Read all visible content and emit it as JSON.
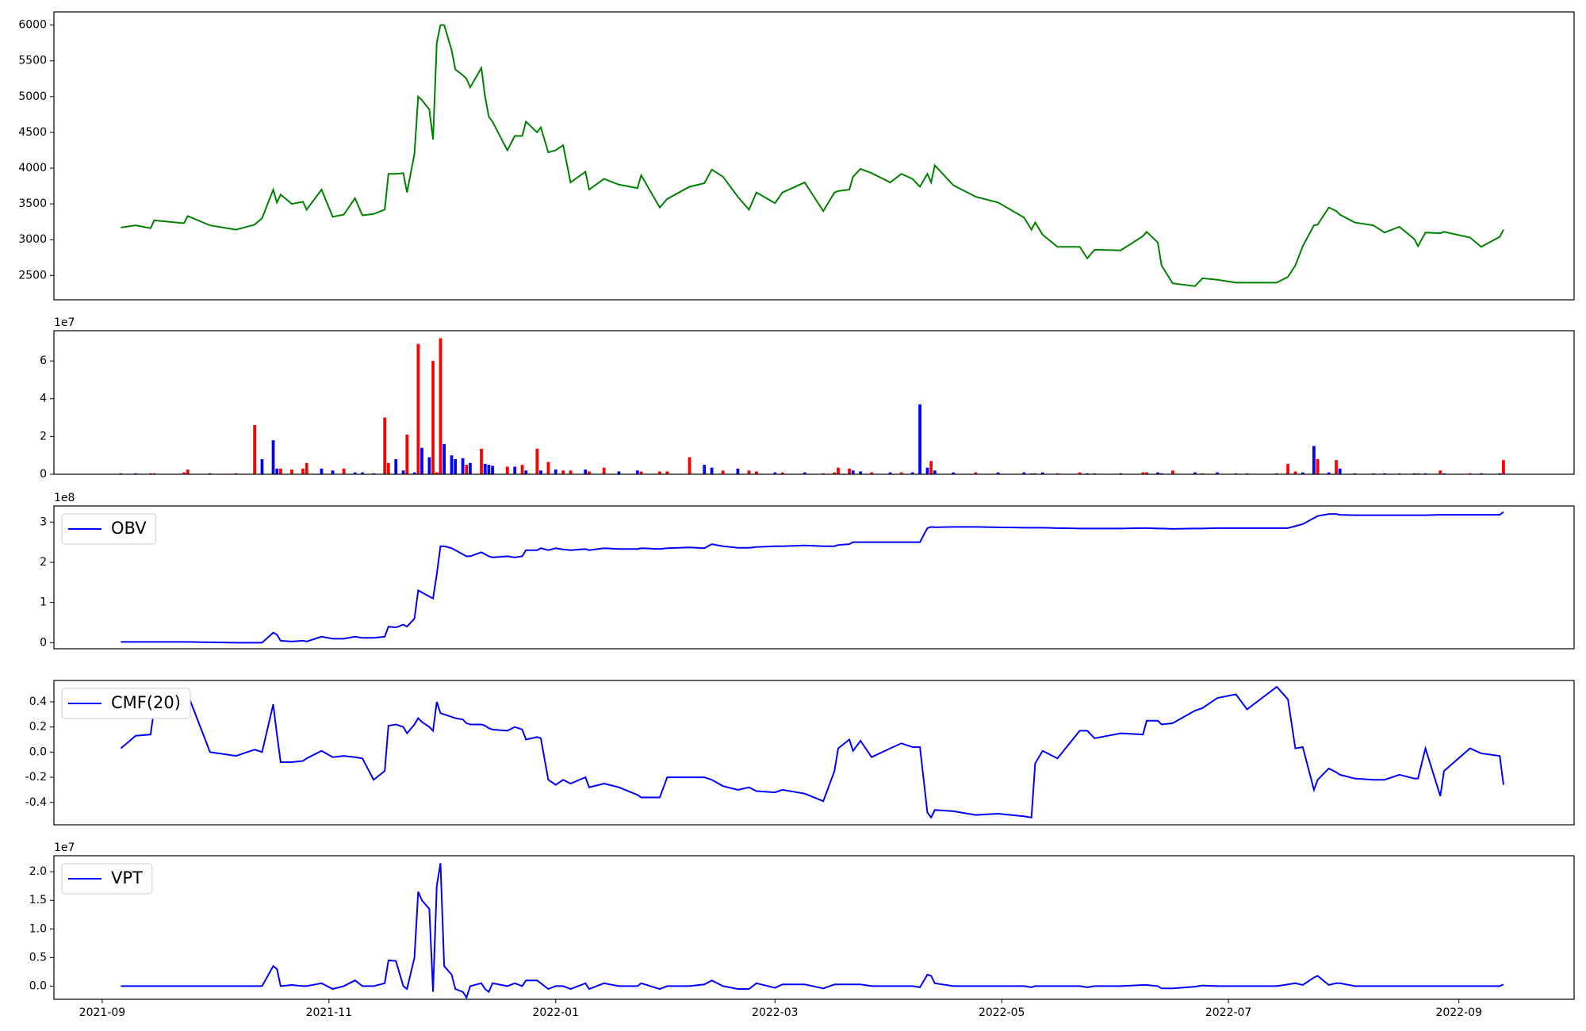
{
  "chart_data": [
    {
      "type": "line",
      "color": "#008000",
      "values": [
        3170,
        3200,
        3160,
        3270,
        3230,
        3330,
        3200,
        3140,
        3210,
        3300,
        3700,
        3520,
        3630,
        3500,
        3530,
        3420,
        3700,
        3320,
        3350,
        3580,
        3340,
        3360,
        3420,
        3920,
        3920,
        3930,
        3660,
        4200,
        5000,
        4950,
        4820,
        4400,
        5750,
        6000,
        6000,
        5650,
        5380,
        5300,
        5250,
        5130,
        5400,
        5000,
        4720,
        4650,
        4250,
        4450,
        4450,
        4650,
        4500,
        4570,
        4220,
        4250,
        4320,
        3800,
        3950,
        3700,
        3850,
        3770,
        3720,
        3900,
        3450,
        3570,
        3740,
        3790,
        3980,
        3880,
        3600,
        3420,
        3660,
        3510,
        3660,
        3800,
        3400,
        3660,
        3680,
        3700,
        3880,
        3990,
        3930,
        3800,
        3920,
        3850,
        3740,
        3920,
        3800,
        4040,
        3760,
        3600,
        3520,
        3310,
        3140,
        3240,
        3070,
        2900,
        2900,
        2740,
        2860,
        2850,
        3050,
        3110,
        2960,
        2640,
        2390,
        2350,
        2460,
        2440,
        2400,
        2400,
        2400,
        2480,
        2640,
        2910,
        3200,
        3210,
        3450,
        3400,
        3350,
        3240,
        3200,
        3100,
        3180,
        3010,
        2910,
        3100,
        3090,
        3110,
        3030,
        2900,
        3040,
        3140
      ],
      "ylim": [
        2160,
        6184
      ],
      "yticks": [
        2500,
        3000,
        3500,
        4000,
        4500,
        5000,
        5500,
        6000
      ]
    },
    {
      "type": "bar",
      "offset_label": "1e7",
      "values": [
        0.05,
        0.05,
        0.05,
        0.05,
        0.1,
        0.25,
        0.05,
        0.05,
        2.6,
        0.8,
        1.8,
        0.3,
        0.3,
        0.25,
        0.3,
        0.6,
        0.3,
        0.2,
        0.3,
        0.1,
        0.1,
        0.05,
        3.0,
        0.6,
        0.8,
        0.2,
        2.1,
        0.1,
        6.9,
        1.4,
        0.9,
        6.0,
        0.1,
        7.2,
        1.6,
        1.0,
        0.8,
        0.85,
        0.5,
        0.6,
        1.35,
        0.55,
        0.5,
        0.45,
        0.4,
        0.4,
        0.5,
        0.2,
        1.35,
        0.2,
        0.65,
        0.25,
        0.2,
        0.2,
        0.25,
        0.15,
        0.35,
        0.15,
        0.2,
        0.15,
        0.15,
        0.15,
        0.9,
        0.5,
        0.35,
        0.2,
        0.3,
        0.2,
        0.15,
        0.1,
        0.1,
        0.1,
        0.05,
        0.1,
        0.35,
        0.3,
        0.2,
        0.15,
        0.1,
        0.1,
        0.1,
        0.1,
        3.7,
        0.35,
        0.7,
        0.2,
        0.1,
        0.1,
        0.1,
        0.1,
        0.05,
        0.05,
        0.1,
        0.05,
        0.1,
        0.05,
        0.05,
        0.05,
        0.1,
        0.1,
        0.1,
        0.05,
        0.2,
        0.1,
        0.05,
        0.1,
        0.05,
        0.05,
        0.05,
        0.55,
        0.15,
        0.1,
        1.5,
        0.8,
        0.1,
        0.75,
        0.3,
        0.05,
        0.05,
        0.05,
        0.05,
        0.05,
        0.05,
        0.05,
        0.2,
        0.05,
        0.05,
        0.05,
        0.05,
        0.75
      ],
      "colors": [
        "red",
        "blue",
        "red",
        "red",
        "red",
        "red",
        "blue",
        "red",
        "red",
        "blue",
        "blue",
        "blue",
        "red",
        "red",
        "red",
        "red",
        "blue",
        "blue",
        "red",
        "blue",
        "blue",
        "blue",
        "red",
        "red",
        "blue",
        "blue",
        "red",
        "blue",
        "red",
        "blue",
        "blue",
        "red",
        "red",
        "red",
        "blue",
        "blue",
        "blue",
        "blue",
        "red",
        "blue",
        "red",
        "blue",
        "blue",
        "blue",
        "red",
        "blue",
        "red",
        "blue",
        "red",
        "blue",
        "red",
        "blue",
        "red",
        "red",
        "blue",
        "red",
        "red",
        "blue",
        "blue",
        "red",
        "red",
        "red",
        "red",
        "blue",
        "blue",
        "red",
        "blue",
        "red",
        "red",
        "blue",
        "red",
        "blue",
        "red",
        "red",
        "red",
        "red",
        "blue",
        "blue",
        "red",
        "blue",
        "red",
        "blue",
        "blue",
        "blue",
        "red",
        "blue",
        "blue",
        "red",
        "blue",
        "blue",
        "red",
        "blue",
        "blue",
        "red",
        "red",
        "blue",
        "red",
        "blue",
        "red",
        "red",
        "blue",
        "blue",
        "red",
        "blue",
        "red",
        "blue",
        "red",
        "red",
        "red",
        "red",
        "red",
        "blue",
        "blue",
        "red",
        "blue",
        "red",
        "blue",
        "blue",
        "red",
        "blue",
        "red",
        "blue",
        "red",
        "blue",
        "red",
        "blue",
        "red",
        "blue",
        "blue",
        "red"
      ],
      "ylim": [
        0,
        7.6
      ],
      "yticks": [
        0,
        2,
        4,
        6
      ]
    },
    {
      "type": "line",
      "offset_label": "1e8",
      "legend": "upper left",
      "series": [
        {
          "name": "OBV",
          "color": "#0000ff",
          "values": [
            0.02,
            0.02,
            0.02,
            0.02,
            0.02,
            0.02,
            0.01,
            0.0,
            0.0,
            0.0,
            0.25,
            0.2,
            0.05,
            0.03,
            0.05,
            0.03,
            0.15,
            0.1,
            0.1,
            0.15,
            0.12,
            0.12,
            0.15,
            0.4,
            0.38,
            0.45,
            0.4,
            0.6,
            1.3,
            1.25,
            1.15,
            1.1,
            1.7,
            2.4,
            2.4,
            2.35,
            2.3,
            2.2,
            2.15,
            2.15,
            2.25,
            2.2,
            2.15,
            2.12,
            2.15,
            2.12,
            2.15,
            2.3,
            2.3,
            2.35,
            2.3,
            2.35,
            2.32,
            2.3,
            2.33,
            2.3,
            2.35,
            2.33,
            2.33,
            2.35,
            2.33,
            2.35,
            2.37,
            2.35,
            2.45,
            2.4,
            2.36,
            2.36,
            2.38,
            2.4,
            2.4,
            2.42,
            2.4,
            2.4,
            2.43,
            2.45,
            2.5,
            2.5,
            2.5,
            2.5,
            2.5,
            2.5,
            2.5,
            2.85,
            2.88,
            2.87,
            2.88,
            2.88,
            2.87,
            2.86,
            2.86,
            2.86,
            2.86,
            2.85,
            2.84,
            2.84,
            2.84,
            2.84,
            2.85,
            2.85,
            2.84,
            2.84,
            2.83,
            2.84,
            2.84,
            2.85,
            2.85,
            2.85,
            2.85,
            2.85,
            2.9,
            2.95,
            3.1,
            3.15,
            3.2,
            3.2,
            3.18,
            3.17,
            3.17,
            3.17,
            3.17,
            3.17,
            3.17,
            3.17,
            3.18,
            3.18,
            3.18,
            3.18,
            3.18,
            3.25
          ]
        }
      ],
      "ylim": [
        -0.15,
        3.4
      ],
      "yticks": [
        0,
        1,
        2,
        3
      ]
    },
    {
      "type": "line",
      "legend": "upper left",
      "series": [
        {
          "name": "CMF(20)",
          "color": "#0000ff",
          "values": [
            0.03,
            0.13,
            0.14,
            0.35,
            0.48,
            0.46,
            0.0,
            -0.03,
            0.02,
            0.0,
            0.38,
            0.14,
            -0.08,
            -0.08,
            -0.07,
            -0.05,
            0.01,
            -0.04,
            -0.03,
            -0.04,
            -0.05,
            -0.22,
            -0.15,
            0.21,
            0.22,
            0.2,
            0.15,
            0.22,
            0.27,
            0.24,
            0.2,
            0.17,
            0.4,
            0.31,
            0.3,
            0.28,
            0.27,
            0.26,
            0.23,
            0.22,
            0.22,
            0.21,
            0.19,
            0.18,
            0.17,
            0.2,
            0.18,
            0.1,
            0.12,
            0.11,
            -0.22,
            -0.26,
            -0.22,
            -0.25,
            -0.2,
            -0.28,
            -0.25,
            -0.28,
            -0.34,
            -0.36,
            -0.36,
            -0.2,
            -0.2,
            -0.2,
            -0.22,
            -0.27,
            -0.3,
            -0.28,
            -0.31,
            -0.32,
            -0.3,
            -0.33,
            -0.39,
            -0.15,
            0.03,
            0.1,
            0.01,
            0.09,
            -0.04,
            0.03,
            0.07,
            0.04,
            0.04,
            -0.48,
            -0.52,
            -0.46,
            -0.47,
            -0.5,
            -0.49,
            -0.51,
            -0.52,
            -0.09,
            0.01,
            -0.05,
            0.17,
            0.17,
            0.11,
            0.15,
            0.14,
            0.25,
            0.25,
            0.22,
            0.23,
            0.33,
            0.35,
            0.43,
            0.46,
            0.34,
            0.52,
            0.42,
            0.03,
            0.04,
            -0.3,
            -0.22,
            -0.13,
            -0.16,
            -0.18,
            -0.21,
            -0.22,
            -0.22,
            -0.18,
            -0.21,
            -0.21,
            0.03,
            -0.35,
            -0.15,
            0.03,
            -0.01,
            -0.03,
            -0.26
          ]
        }
      ],
      "ylim": [
        -0.578,
        0.57
      ],
      "yticks": [
        -0.4,
        -0.2,
        {
          "value": 0,
          "label": "0.0"
        },
        0.2,
        0.4
      ]
    },
    {
      "type": "line",
      "offset_label": "1e7",
      "legend": "upper left",
      "series": [
        {
          "name": "VPT",
          "color": "#0000ff",
          "values": [
            0,
            0,
            0,
            0,
            0,
            0,
            0,
            0,
            0,
            0,
            0.35,
            0.3,
            0,
            0.02,
            0,
            0,
            0.05,
            -0.05,
            0,
            0.1,
            0,
            0,
            0.05,
            0.45,
            0.44,
            0,
            -0.05,
            0.5,
            1.65,
            1.5,
            1.35,
            -0.1,
            1.75,
            2.15,
            0.35,
            0.2,
            -0.05,
            -0.1,
            -0.2,
            0,
            0.05,
            -0.05,
            -0.1,
            0.05,
            0,
            0.05,
            0,
            0.1,
            0.1,
            0.05,
            -0.05,
            0,
            0,
            -0.05,
            0.05,
            -0.05,
            0.05,
            0,
            0,
            0.05,
            -0.05,
            0,
            0,
            0.03,
            0.1,
            0,
            -0.05,
            -0.05,
            0.05,
            -0.03,
            0.03,
            0.03,
            -0.04,
            0.03,
            0.03,
            0.03,
            0.03,
            0.03,
            0,
            0,
            0,
            0,
            -0.02,
            0.2,
            0.18,
            0.05,
            0,
            0,
            0,
            0,
            -0.02,
            0,
            0,
            0,
            0,
            -0.02,
            0,
            0,
            0.02,
            0.02,
            0,
            -0.04,
            -0.04,
            -0.01,
            0.01,
            0,
            0,
            0,
            0,
            0.03,
            0.05,
            0.02,
            0.15,
            0.18,
            0.02,
            0.05,
            0.05,
            0,
            0,
            0,
            0,
            0,
            0,
            0,
            0,
            0,
            0,
            0,
            0,
            0.03
          ]
        }
      ],
      "ylim": [
        -0.23,
        2.28
      ],
      "yticks": [
        {
          "value": 0,
          "label": "0.0"
        },
        0.5,
        {
          "value": 1,
          "label": "1.0"
        },
        1.5,
        {
          "value": 2,
          "label": "2.0"
        }
      ],
      "x": [
        "2021-09-06",
        "2021-09-10",
        "2021-09-14",
        "2021-09-15",
        "2021-09-23",
        "2021-09-24",
        "2021-09-30",
        "2021-10-07",
        "2021-10-12",
        "2021-10-14",
        "2021-10-17",
        "2021-10-18",
        "2021-10-19",
        "2021-10-22",
        "2021-10-25",
        "2021-10-26",
        "2021-10-30",
        "2021-11-02",
        "2021-11-05",
        "2021-11-08",
        "2021-11-10",
        "2021-11-13",
        "2021-11-16",
        "2021-11-17",
        "2021-11-19",
        "2021-11-21",
        "2021-11-22",
        "2021-11-24",
        "2021-11-25",
        "2021-11-26",
        "2021-11-28",
        "2021-11-29",
        "2021-11-30",
        "2021-12-01",
        "2021-12-02",
        "2021-12-04",
        "2021-12-05",
        "2021-12-07",
        "2021-12-08",
        "2021-12-09",
        "2021-12-12",
        "2021-12-13",
        "2021-12-14",
        "2021-12-15",
        "2021-12-19",
        "2021-12-21",
        "2021-12-23",
        "2021-12-24",
        "2021-12-27",
        "2021-12-28",
        "2021-12-30",
        "2022-01-01",
        "2022-01-03",
        "2022-01-05",
        "2022-01-09",
        "2022-01-10",
        "2022-01-14",
        "2022-01-18",
        "2022-01-23",
        "2022-01-24",
        "2022-01-29",
        "2022-01-31",
        "2022-02-06",
        "2022-02-10",
        "2022-02-12",
        "2022-02-15",
        "2022-02-19",
        "2022-02-22",
        "2022-02-24",
        "2022-03-01",
        "2022-03-03",
        "2022-03-09",
        "2022-03-14",
        "2022-03-17",
        "2022-03-18",
        "2022-03-21",
        "2022-03-22",
        "2022-03-24",
        "2022-03-27",
        "2022-04-01",
        "2022-04-04",
        "2022-04-07",
        "2022-04-09",
        "2022-04-11",
        "2022-04-12",
        "2022-04-13",
        "2022-04-18",
        "2022-04-24",
        "2022-04-30",
        "2022-05-07",
        "2022-05-09",
        "2022-05-10",
        "2022-05-12",
        "2022-05-16",
        "2022-05-22",
        "2022-05-24",
        "2022-05-26",
        "2022-06-02",
        "2022-06-08",
        "2022-06-09",
        "2022-06-12",
        "2022-06-13",
        "2022-06-16",
        "2022-06-22",
        "2022-06-24",
        "2022-06-28",
        "2022-07-03",
        "2022-07-06",
        "2022-07-14",
        "2022-07-17",
        "2022-07-19",
        "2022-07-21",
        "2022-07-24",
        "2022-07-25",
        "2022-07-28",
        "2022-07-30",
        "2022-07-31",
        "2022-08-04",
        "2022-08-09",
        "2022-08-12",
        "2022-08-16",
        "2022-08-20",
        "2022-08-21",
        "2022-08-23",
        "2022-08-27",
        "2022-08-28",
        "2022-09-04",
        "2022-09-07",
        "2022-09-12",
        "2022-09-13"
      ],
      "xlim": [
        "2021-08-19",
        "2022-10-02"
      ],
      "xticks": [
        {
          "value": "2021-09-01",
          "label": "2021-09"
        },
        {
          "value": "2021-11-01",
          "label": "2021-11"
        },
        {
          "value": "2022-01-01",
          "label": "2022-01"
        },
        {
          "value": "2022-03-01",
          "label": "2022-03"
        },
        {
          "value": "2022-05-01",
          "label": "2022-05"
        },
        {
          "value": "2022-07-01",
          "label": "2022-07"
        },
        {
          "value": "2022-09-01",
          "label": "2022-09"
        }
      ]
    }
  ]
}
